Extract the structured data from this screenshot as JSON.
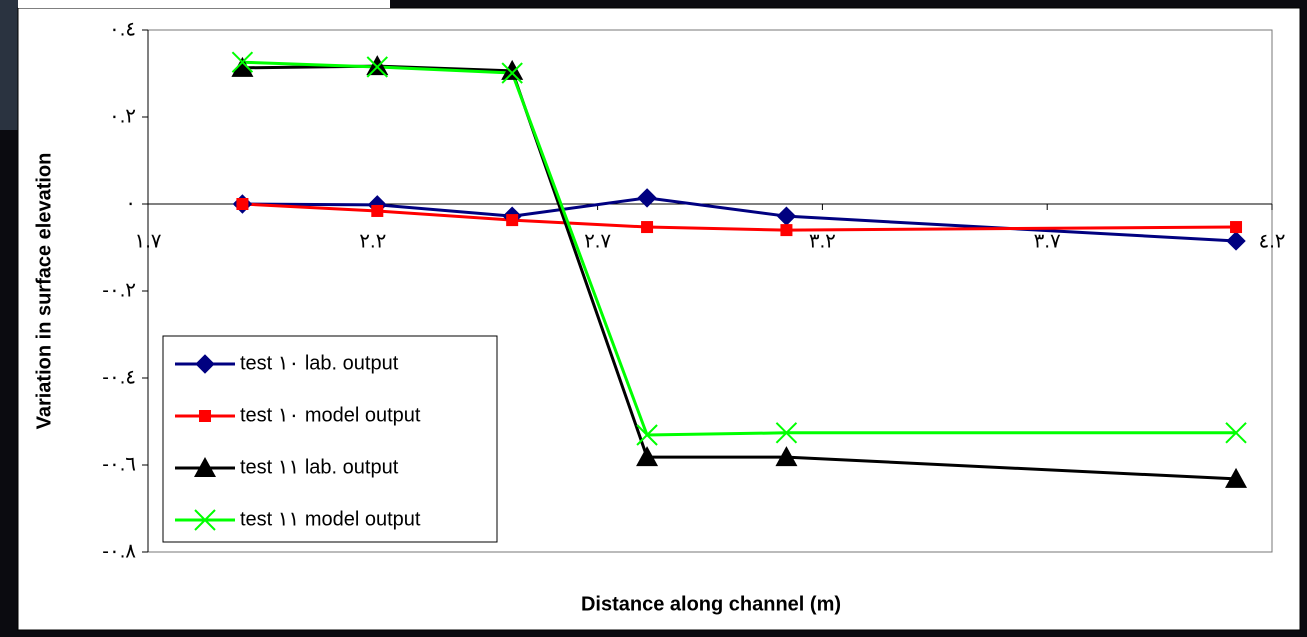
{
  "chart_data": {
    "type": "line",
    "x_label": "Distance along channel (m)",
    "y_label": "Variation in surface elevation",
    "x": [
      1.91,
      2.21,
      2.51,
      2.81,
      3.12,
      4.12
    ],
    "series": [
      {
        "name": "test ١٠ lab. output",
        "color": "#000080",
        "marker": "diamond",
        "values": [
          0,
          -0.002,
          -0.028,
          0.014,
          -0.028,
          -0.085
        ]
      },
      {
        "name": "test ١٠ model output",
        "color": "#ff0000",
        "marker": "square",
        "values": [
          0,
          -0.016,
          -0.037,
          -0.053,
          -0.06,
          -0.053
        ]
      },
      {
        "name": "test ١١ lab. output",
        "color": "#000000",
        "marker": "triangle",
        "values": [
          0.313,
          0.317,
          0.306,
          -0.582,
          -0.582,
          -0.632
        ]
      },
      {
        "name": "test ١١ model output",
        "color": "#00ff00",
        "marker": "x",
        "values": [
          0.326,
          0.315,
          0.301,
          -0.531,
          -0.526,
          -0.526
        ]
      }
    ],
    "xlim": [
      1.7,
      4.2
    ],
    "xticks": [
      {
        "value": 1.7,
        "label": "١.٧"
      },
      {
        "value": 2.2,
        "label": "٢.٢"
      },
      {
        "value": 2.7,
        "label": "٢.٧"
      },
      {
        "value": 3.2,
        "label": "٣.٢"
      },
      {
        "value": 3.7,
        "label": "٣.٧"
      },
      {
        "value": 4.2,
        "label": "٤.٢"
      }
    ],
    "ylim": [
      -0.8,
      0.4
    ],
    "yticks": [
      {
        "value": 0.4,
        "label": "٠.٤"
      },
      {
        "value": 0.2,
        "label": "٠.٢"
      },
      {
        "value": 0,
        "label": "٠"
      },
      {
        "value": -0.2,
        "label": "-٠.٢"
      },
      {
        "value": -0.4,
        "label": "-٠.٤"
      },
      {
        "value": -0.6,
        "label": "-٠.٦"
      },
      {
        "value": -0.8,
        "label": "-٠.٨"
      }
    ],
    "grid": false,
    "legend": "lower-left"
  }
}
